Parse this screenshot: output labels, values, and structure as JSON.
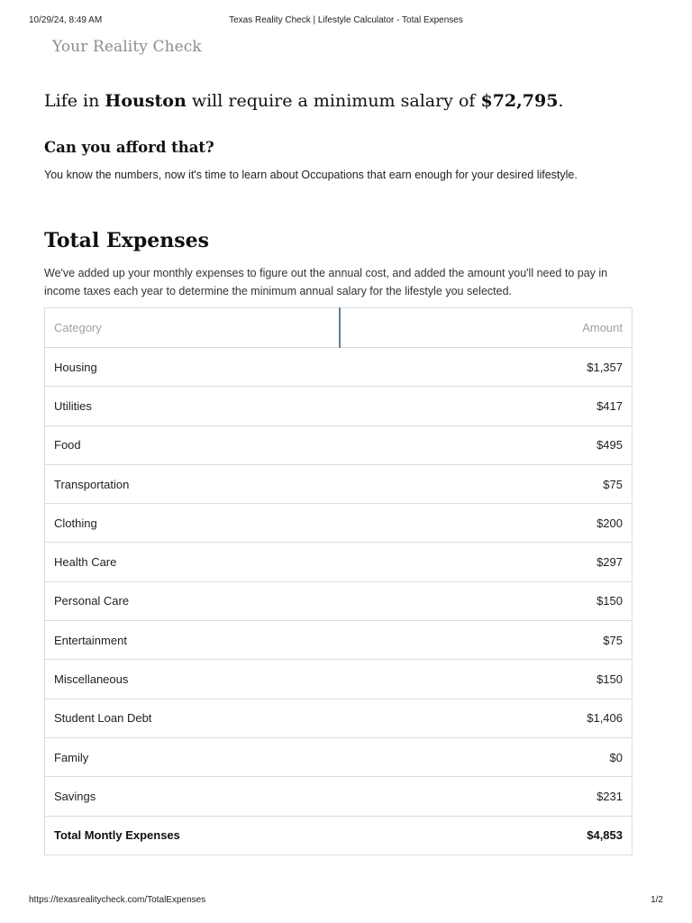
{
  "print_header": {
    "date": "10/29/24, 8:49 AM",
    "title": "Texas Reality Check | Lifestyle Calculator - Total Expenses"
  },
  "print_footer": {
    "url": "https://texasrealitycheck.com/TotalExpenses",
    "page": "1/2"
  },
  "brand": "Your Reality Check",
  "headline": {
    "prefix": "Life in",
    "city": "Houston",
    "middle": "will require a minimum salary of",
    "salary": "$72,795",
    "suffix": "."
  },
  "afford": {
    "title": "Can you afford that?",
    "text": "You know the numbers, now it's time to learn about Occupations that earn enough for your desired lifestyle."
  },
  "total_expenses": {
    "title": "Total Expenses",
    "description": "We've added up your monthly expenses to figure out the annual cost, and added the amount you'll need to pay in income taxes each year to determine the minimum annual salary for the lifestyle you selected."
  },
  "table": {
    "headers": [
      "Category",
      "Amount"
    ],
    "rows": [
      [
        "Housing",
        "$1,357"
      ],
      [
        "Utilities",
        "$417"
      ],
      [
        "Food",
        "$495"
      ],
      [
        "Transportation",
        "$75"
      ],
      [
        "Clothing",
        "$200"
      ],
      [
        "Health Care",
        "$297"
      ],
      [
        "Personal Care",
        "$150"
      ],
      [
        "Entertainment",
        "$75"
      ],
      [
        "Miscellaneous",
        "$150"
      ],
      [
        "Student Loan Debt",
        "$1,406"
      ],
      [
        "Family",
        "$0"
      ],
      [
        "Savings",
        "$231"
      ]
    ],
    "total": [
      "Total Montly Expenses",
      "$4,853"
    ]
  }
}
